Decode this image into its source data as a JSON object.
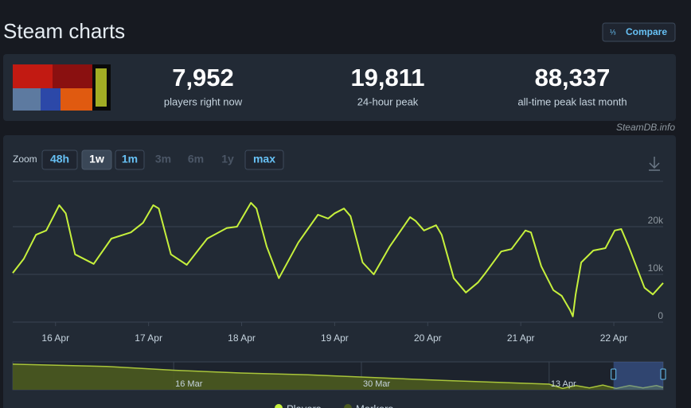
{
  "header": {
    "title": "Steam charts",
    "compare": "Compare",
    "source": "SteamDB.info"
  },
  "stats": [
    {
      "value": "7,952",
      "label": "players right now"
    },
    {
      "value": "19,811",
      "label": "24-hour peak"
    },
    {
      "value": "88,337",
      "label": "all-time peak last month"
    }
  ],
  "zoom": {
    "label": "Zoom",
    "options": [
      "48h",
      "1w",
      "1m",
      "3m",
      "6m",
      "1y",
      "max"
    ],
    "active": "1w",
    "disabled": [
      "3m",
      "6m",
      "1y"
    ]
  },
  "chart_data": [
    {
      "type": "line",
      "xlim": [
        15.54,
        22.53
      ],
      "xticks": [
        {
          "value": 16,
          "label": "16 Apr"
        },
        {
          "value": 17,
          "label": "17 Apr"
        },
        {
          "value": 18,
          "label": "18 Apr"
        },
        {
          "value": 19,
          "label": "19 Apr"
        },
        {
          "value": 20,
          "label": "20 Apr"
        },
        {
          "value": 21,
          "label": "21 Apr"
        },
        {
          "value": 22,
          "label": "22 Apr"
        }
      ],
      "ylim": [
        0,
        29500
      ],
      "yticks": [
        0,
        {
          "value": 10000,
          "label": "10k"
        },
        {
          "value": 20000,
          "label": "20k"
        }
      ],
      "grid": true,
      "x": [
        15.54,
        15.66,
        15.79,
        15.9,
        16.04,
        16.11,
        16.21,
        16.41,
        16.6,
        16.81,
        16.94,
        17.05,
        17.11,
        17.24,
        17.41,
        17.63,
        17.84,
        17.95,
        18.1,
        18.16,
        18.27,
        18.4,
        18.61,
        18.82,
        18.93,
        19.0,
        19.1,
        19.17,
        19.3,
        19.42,
        19.59,
        19.81,
        19.87,
        19.96,
        20.09,
        20.15,
        20.28,
        20.41,
        20.54,
        20.62,
        20.79,
        20.9,
        21.05,
        21.11,
        21.22,
        21.35,
        21.44,
        21.53,
        21.56,
        21.59,
        21.65,
        21.78,
        21.91,
        22.01,
        22.08,
        22.16,
        22.33,
        22.42,
        22.53
      ],
      "series": [
        {
          "name": "Players",
          "color": "#c6f03c",
          "values": [
            10300,
            13300,
            18300,
            19200,
            24500,
            22800,
            14200,
            12200,
            17500,
            18800,
            20800,
            24500,
            23800,
            14200,
            12000,
            17500,
            19700,
            20000,
            25000,
            23800,
            15800,
            9200,
            16700,
            22500,
            21700,
            22800,
            23800,
            22200,
            12500,
            10000,
            15800,
            22000,
            21200,
            19200,
            20300,
            18300,
            9200,
            6200,
            8300,
            10300,
            14800,
            15300,
            19200,
            18800,
            11700,
            6700,
            5500,
            2500,
            1200,
            5800,
            12500,
            15000,
            15500,
            19200,
            19500,
            15800,
            7200,
            5800,
            8200
          ]
        }
      ],
      "marker_legend": "Markers"
    },
    {
      "type": "area",
      "xlim": [
        63,
        111.5
      ],
      "ylim": [
        0,
        60000
      ],
      "xticks": [
        {
          "value": 75,
          "label": "16 Mar"
        },
        {
          "value": 89,
          "label": "30 Mar"
        },
        {
          "value": 103,
          "label": "13 Apr"
        }
      ],
      "selection": [
        107.8,
        111.5
      ],
      "x": [
        63,
        66,
        70,
        75,
        80,
        85,
        90,
        95,
        100,
        103,
        104,
        105,
        106,
        107,
        108,
        109,
        110,
        111,
        111.5
      ],
      "series": [
        {
          "color": "#a9c53a",
          "values": [
            55000,
            53000,
            50000,
            42000,
            36000,
            32000,
            26000,
            20000,
            15000,
            12000,
            3000,
            9000,
            4000,
            10000,
            3000,
            9000,
            4000,
            9000,
            5000
          ]
        }
      ]
    }
  ]
}
